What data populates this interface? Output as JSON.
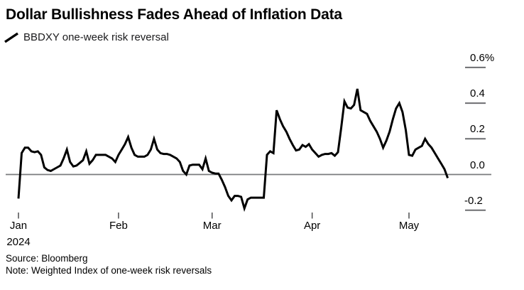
{
  "header": {
    "title": "Dollar Bullishness Fades Ahead of Inflation Data",
    "legend": {
      "icon": "line-series-icon",
      "label": "BBDXY one-week risk reversal"
    }
  },
  "footer": {
    "source": "Source: Bloomberg",
    "note": "Note: Weighted Index of one-week risk reversals"
  },
  "colors": {
    "series_line": "#000000",
    "zero_line": "#7a7b7e",
    "y_tick": "#6d6e71",
    "x_tick": "#4d4e50",
    "text": "#000000"
  },
  "chart_data": {
    "type": "line",
    "title": "Dollar Bullishness Fades Ahead of Inflation Data",
    "series_name": "BBDXY one-week risk reversal",
    "unit": "%",
    "grid": "off",
    "legend_position": "top-left",
    "y_axis": {
      "side": "right",
      "range": [
        -0.28,
        0.65
      ],
      "ticks": [
        {
          "label": "0.6%",
          "value": 0.6
        },
        {
          "label": "0.4",
          "value": 0.4
        },
        {
          "label": "0.2",
          "value": 0.2
        },
        {
          "label": "0.0",
          "value": 0.0
        },
        {
          "label": "-0.2",
          "value": -0.2
        }
      ]
    },
    "x_axis": {
      "description": "days since Jan 1 2024, one point per day",
      "step_days": 1,
      "ticks": [
        {
          "label": "Jan",
          "sublabel": "2024",
          "day": 0
        },
        {
          "label": "Feb",
          "day": 31
        },
        {
          "label": "Mar",
          "day": 60
        },
        {
          "label": "Apr",
          "day": 91
        },
        {
          "label": "May",
          "day": 121
        }
      ]
    },
    "values": [
      -0.135,
      0.12,
      0.15,
      0.15,
      0.13,
      0.125,
      0.13,
      0.11,
      0.04,
      0.025,
      0.02,
      0.03,
      0.04,
      0.05,
      0.09,
      0.14,
      0.07,
      0.045,
      0.05,
      0.065,
      0.08,
      0.13,
      0.06,
      0.08,
      0.11,
      0.11,
      0.11,
      0.11,
      0.1,
      0.09,
      0.07,
      0.11,
      0.14,
      0.17,
      0.21,
      0.15,
      0.11,
      0.1,
      0.1,
      0.1,
      0.11,
      0.14,
      0.2,
      0.14,
      0.12,
      0.115,
      0.115,
      0.11,
      0.1,
      0.09,
      0.07,
      0.02,
      0.0,
      0.05,
      0.055,
      0.055,
      0.055,
      0.03,
      0.09,
      0.02,
      0.01,
      0.005,
      0.005,
      -0.03,
      -0.07,
      -0.12,
      -0.145,
      -0.12,
      -0.12,
      -0.125,
      -0.19,
      -0.14,
      -0.13,
      -0.13,
      -0.13,
      -0.13,
      -0.13,
      0.11,
      0.13,
      0.12,
      0.36,
      0.31,
      0.27,
      0.24,
      0.2,
      0.165,
      0.135,
      0.14,
      0.165,
      0.155,
      0.17,
      0.14,
      0.12,
      0.1,
      0.11,
      0.115,
      0.115,
      0.12,
      0.105,
      0.125,
      0.26,
      0.41,
      0.375,
      0.37,
      0.39,
      0.48,
      0.36,
      0.35,
      0.34,
      0.3,
      0.27,
      0.24,
      0.2,
      0.15,
      0.19,
      0.24,
      0.31,
      0.37,
      0.4,
      0.35,
      0.25,
      0.11,
      0.105,
      0.14,
      0.15,
      0.16,
      0.2,
      0.17,
      0.15,
      0.12,
      0.09,
      0.06,
      0.03,
      -0.02
    ]
  }
}
